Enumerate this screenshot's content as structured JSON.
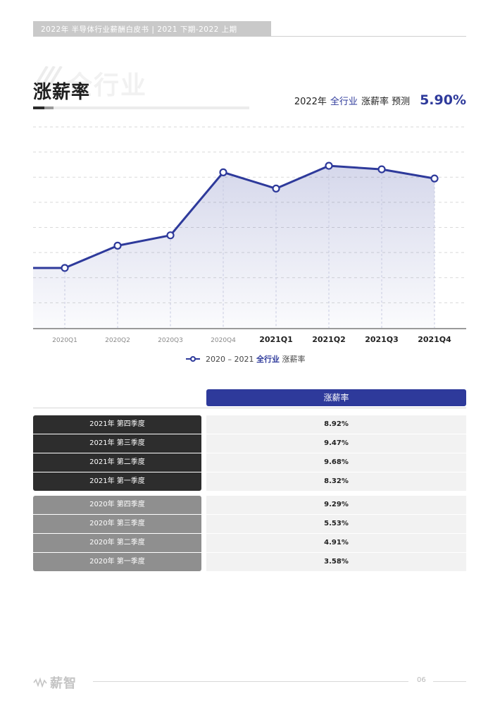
{
  "header": {
    "title": "2022年 半导体行业薪酬白皮书   |   2021 下期-2022 上期"
  },
  "section": {
    "ghost_title": "全行业",
    "title": "涨薪率"
  },
  "forecast": {
    "prefix": "2022年",
    "industry": "全行业",
    "label": "涨薪率 预测",
    "value": "5.90%"
  },
  "colors": {
    "accent": "#2e3a9b",
    "dark_row": "#2d2d2d",
    "grey_row": "#8f8f8f"
  },
  "chart_data": {
    "type": "area",
    "categories": [
      "2020Q1",
      "2020Q2",
      "2020Q3",
      "2020Q4",
      "2021Q1",
      "2021Q2",
      "2021Q3",
      "2021Q4"
    ],
    "series": [
      {
        "name": "2020 – 2021 全行业 涨薪率",
        "values": [
          3.58,
          4.91,
          5.53,
          9.29,
          8.32,
          9.68,
          9.47,
          8.92
        ]
      }
    ],
    "ylim": [
      0,
      12
    ],
    "grid": true,
    "legend": "bottom-center"
  },
  "legend": {
    "range": "2020 – 2021",
    "industry": "全行业",
    "metric": "涨薪率"
  },
  "table": {
    "header": "涨薪率",
    "rows": [
      {
        "label": "2021年  第四季度",
        "value": "8.92%"
      },
      {
        "label": "2021年  第三季度",
        "value": "9.47%"
      },
      {
        "label": "2021年  第二季度",
        "value": "9.68%"
      },
      {
        "label": "2021年  第一季度",
        "value": "8.32%"
      },
      {
        "label": "2020年  第四季度",
        "value": "9.29%"
      },
      {
        "label": "2020年  第三季度",
        "value": "5.53%"
      },
      {
        "label": "2020年  第二季度",
        "value": "4.91%"
      },
      {
        "label": "2020年  第一季度",
        "value": "3.58%"
      }
    ]
  },
  "footer": {
    "brand": "薪智",
    "page": "06"
  }
}
